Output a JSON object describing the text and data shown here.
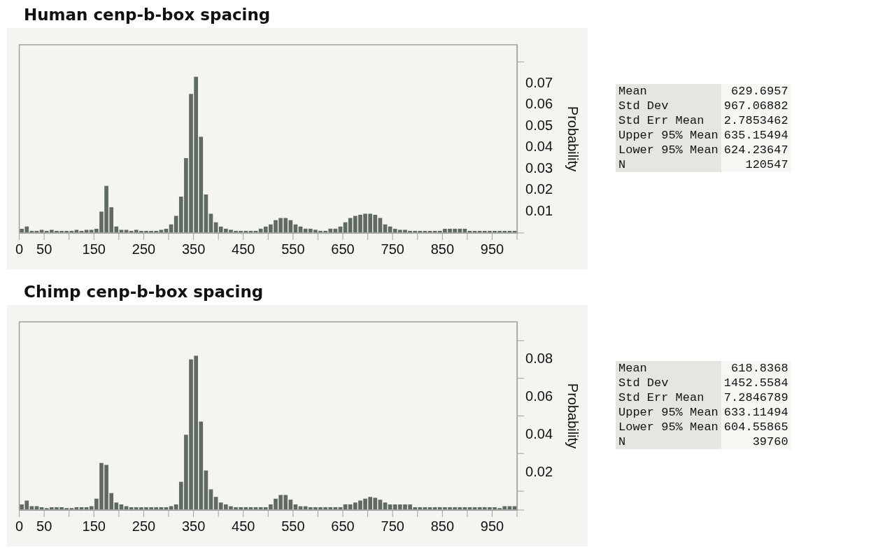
{
  "chart_data": [
    {
      "type": "histogram",
      "title": "Human cenp-b-box spacing",
      "ylabel": "Probability",
      "color": "#5f6a61",
      "grid": false,
      "legend": false,
      "bins": [
        0,
        10,
        20,
        30,
        40,
        50,
        60,
        70,
        80,
        90,
        100,
        110,
        120,
        130,
        140,
        150,
        160,
        170,
        180,
        190,
        200,
        210,
        220,
        230,
        240,
        250,
        260,
        270,
        280,
        290,
        300,
        310,
        320,
        330,
        340,
        350,
        360,
        370,
        380,
        390,
        400,
        410,
        420,
        430,
        440,
        450,
        460,
        470,
        480,
        490,
        500,
        510,
        520,
        530,
        540,
        550,
        560,
        570,
        580,
        590,
        600,
        610,
        620,
        630,
        640,
        650,
        660,
        670,
        680,
        690,
        700,
        710,
        720,
        730,
        740,
        750,
        760,
        770,
        780,
        790,
        800,
        810,
        820,
        830,
        840,
        850,
        860,
        870,
        880,
        890,
        900,
        910,
        920,
        930,
        940,
        950,
        960,
        970,
        980,
        990,
        1000
      ],
      "values": [
        0.002,
        0.003,
        0.001,
        0.001,
        0.0015,
        0.001,
        0.0015,
        0.001,
        0.001,
        0.001,
        0.001,
        0.0015,
        0.001,
        0.0015,
        0.0015,
        0.002,
        0.01,
        0.022,
        0.012,
        0.003,
        0.0015,
        0.0015,
        0.001,
        0.0015,
        0.001,
        0.001,
        0.001,
        0.001,
        0.0015,
        0.002,
        0.004,
        0.008,
        0.017,
        0.035,
        0.065,
        0.073,
        0.045,
        0.018,
        0.009,
        0.005,
        0.003,
        0.002,
        0.0015,
        0.001,
        0.001,
        0.001,
        0.001,
        0.001,
        0.002,
        0.003,
        0.004,
        0.006,
        0.007,
        0.007,
        0.006,
        0.004,
        0.003,
        0.002,
        0.002,
        0.0015,
        0.001,
        0.001,
        0.002,
        0.002,
        0.003,
        0.005,
        0.007,
        0.008,
        0.0085,
        0.009,
        0.009,
        0.0085,
        0.007,
        0.004,
        0.003,
        0.002,
        0.0015,
        0.0015,
        0.001,
        0.001,
        0.001,
        0.001,
        0.001,
        0.001,
        0.001,
        0.002,
        0.002,
        0.002,
        0.002,
        0.002,
        0.001,
        0.001,
        0.001,
        0.001,
        0.001,
        0.001,
        0.001,
        0.001,
        0.001,
        0.001
      ],
      "xlim": [
        0,
        1000
      ],
      "xticks": [
        0,
        50,
        {
          "value": 100,
          "label": null
        },
        150,
        {
          "value": 200,
          "label": null
        },
        250,
        {
          "value": 300,
          "label": null
        },
        350,
        {
          "value": 400,
          "label": null
        },
        450,
        {
          "value": 500,
          "label": null
        },
        550,
        {
          "value": 600,
          "label": null
        },
        650,
        {
          "value": 700,
          "label": null
        },
        750,
        {
          "value": 800,
          "label": null
        },
        850,
        {
          "value": 900,
          "label": null
        },
        950,
        {
          "value": 1000,
          "label": null
        }
      ],
      "ylim": [
        0,
        0.088
      ],
      "yticks": [
        {
          "value": 0,
          "label": null
        },
        0.01,
        0.02,
        0.03,
        0.04,
        0.05,
        0.06,
        0.07,
        {
          "value": 0.08,
          "label": null
        }
      ]
    },
    {
      "type": "other",
      "data_labels": true,
      "categories": [
        "Mean",
        "Std Dev",
        "Std Err Mean",
        "Upper 95% Mean",
        "Lower 95% Mean",
        "N"
      ],
      "values": [
        629.6957,
        967.06882,
        2.7853462,
        635.15494,
        624.23647,
        120547
      ]
    },
    {
      "type": "histogram",
      "title": "Chimp cenp-b-box spacing",
      "ylabel": "Probability",
      "color": "#5f6a61",
      "grid": false,
      "legend": false,
      "bins": [
        0,
        10,
        20,
        30,
        40,
        50,
        60,
        70,
        80,
        90,
        100,
        110,
        120,
        130,
        140,
        150,
        160,
        170,
        180,
        190,
        200,
        210,
        220,
        230,
        240,
        250,
        260,
        270,
        280,
        290,
        300,
        310,
        320,
        330,
        340,
        350,
        360,
        370,
        380,
        390,
        400,
        410,
        420,
        430,
        440,
        450,
        460,
        470,
        480,
        490,
        500,
        510,
        520,
        530,
        540,
        550,
        560,
        570,
        580,
        590,
        600,
        610,
        620,
        630,
        640,
        650,
        660,
        670,
        680,
        690,
        700,
        710,
        720,
        730,
        740,
        750,
        760,
        770,
        780,
        790,
        800,
        810,
        820,
        830,
        840,
        850,
        860,
        870,
        880,
        890,
        900,
        910,
        920,
        930,
        940,
        950,
        960,
        970,
        980,
        990,
        1000
      ],
      "values": [
        0.003,
        0.005,
        0.002,
        0.002,
        0.0015,
        0.001,
        0.0015,
        0.0015,
        0.0015,
        0.001,
        0.001,
        0.0015,
        0.0015,
        0.0015,
        0.002,
        0.006,
        0.025,
        0.024,
        0.009,
        0.004,
        0.003,
        0.002,
        0.0015,
        0.0015,
        0.0015,
        0.0015,
        0.0015,
        0.0015,
        0.0015,
        0.0015,
        0.002,
        0.003,
        0.015,
        0.04,
        0.08,
        0.082,
        0.047,
        0.021,
        0.011,
        0.007,
        0.004,
        0.003,
        0.002,
        0.0015,
        0.0015,
        0.0015,
        0.0015,
        0.0015,
        0.0015,
        0.0015,
        0.003,
        0.006,
        0.008,
        0.008,
        0.0055,
        0.003,
        0.002,
        0.002,
        0.0015,
        0.0015,
        0.0015,
        0.0015,
        0.0015,
        0.0015,
        0.0015,
        0.003,
        0.003,
        0.004,
        0.005,
        0.006,
        0.007,
        0.0065,
        0.0055,
        0.004,
        0.003,
        0.003,
        0.003,
        0.003,
        0.003,
        0.0015,
        0.0015,
        0.0015,
        0.0015,
        0.0015,
        0.0015,
        0.0015,
        0.0015,
        0.0015,
        0.0015,
        0.0015,
        0.0015,
        0.0015,
        0.0015,
        0.0015,
        0.0015,
        0.0015,
        0.001,
        0.002,
        0.002,
        0.002
      ],
      "xlim": [
        0,
        1000
      ],
      "xticks": [
        0,
        50,
        {
          "value": 100,
          "label": null
        },
        150,
        {
          "value": 200,
          "label": null
        },
        250,
        {
          "value": 300,
          "label": null
        },
        350,
        {
          "value": 400,
          "label": null
        },
        450,
        {
          "value": 500,
          "label": null
        },
        550,
        {
          "value": 600,
          "label": null
        },
        650,
        {
          "value": 700,
          "label": null
        },
        750,
        {
          "value": 800,
          "label": null
        },
        850,
        {
          "value": 900,
          "label": null
        },
        950,
        {
          "value": 1000,
          "label": null
        }
      ],
      "ylim": [
        0,
        0.1
      ],
      "yticks": [
        {
          "value": 0,
          "label": null
        },
        {
          "value": 0.01,
          "label": null
        },
        0.02,
        {
          "value": 0.03,
          "label": null
        },
        0.04,
        {
          "value": 0.05,
          "label": null
        },
        0.06,
        {
          "value": 0.07,
          "label": null
        },
        0.08,
        {
          "value": 0.09,
          "label": null
        }
      ]
    },
    {
      "type": "other",
      "data_labels": true,
      "categories": [
        "Mean",
        "Std Dev",
        "Std Err Mean",
        "Upper 95% Mean",
        "Lower 95% Mean",
        "N"
      ],
      "values": [
        618.8368,
        1452.5584,
        7.2846789,
        633.11494,
        604.55865,
        39760
      ]
    }
  ]
}
